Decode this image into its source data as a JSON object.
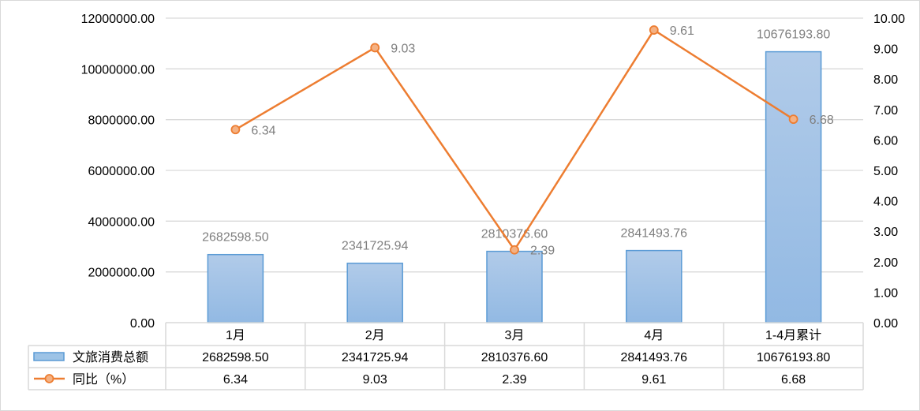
{
  "chart_data": {
    "type": "bar+line",
    "categories": [
      "1月",
      "2月",
      "3月",
      "4月",
      "1-4月累计"
    ],
    "series": [
      {
        "name": "文旅消费总额",
        "type": "bar",
        "axis": "left",
        "values": [
          2682598.5,
          2341725.94,
          2810376.6,
          2841493.76,
          10676193.8
        ],
        "labels": [
          "2682598.50",
          "2341725.94",
          "2810376.60",
          "2841493.76",
          "10676193.80"
        ],
        "color": "#9dc3e6"
      },
      {
        "name": "同比（%）",
        "type": "line",
        "axis": "right",
        "values": [
          6.34,
          9.03,
          2.39,
          9.61,
          6.68
        ],
        "labels": [
          "6.34",
          "9.03",
          "2.39",
          "9.61",
          "6.68"
        ],
        "color": "#ed7d31"
      }
    ],
    "y_left": {
      "ylim": [
        0,
        12000000
      ],
      "ticks": [
        "0.00",
        "2000000.00",
        "4000000.00",
        "6000000.00",
        "8000000.00",
        "10000000.00",
        "12000000.00"
      ]
    },
    "y_right": {
      "ylim": [
        0,
        10
      ],
      "ticks": [
        "0.00",
        "1.00",
        "2.00",
        "3.00",
        "4.00",
        "5.00",
        "6.00",
        "7.00",
        "8.00",
        "9.00",
        "10.00"
      ]
    },
    "grid": true,
    "legend": "data-table",
    "title": "",
    "xlabel": "",
    "ylabel": ""
  }
}
